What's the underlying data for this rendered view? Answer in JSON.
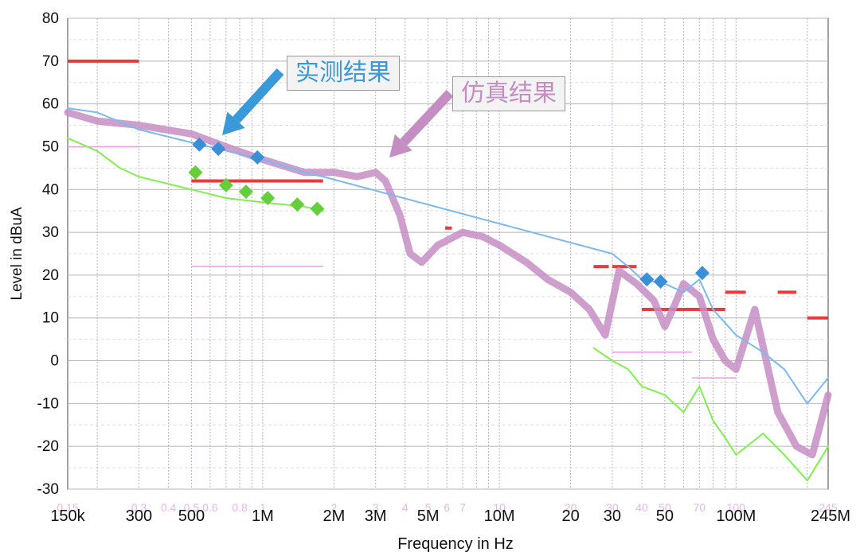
{
  "chart_data": {
    "type": "line",
    "xlabel": "Frequency in Hz",
    "ylabel": "Level in dBuA",
    "xscale": "log",
    "xlim": [
      150000,
      245000000
    ],
    "ylim": [
      -30,
      80
    ],
    "y_ticks": [
      "80",
      "70",
      "60",
      "50",
      "40",
      "30",
      "20",
      "10",
      "0",
      "-10",
      "-20",
      "-30"
    ],
    "x_major_ticks": [
      {
        "label": "150k",
        "value": 150000
      },
      {
        "label": "300",
        "value": 300000
      },
      {
        "label": "500",
        "value": 500000
      },
      {
        "label": "1M",
        "value": 1000000
      },
      {
        "label": "2M",
        "value": 2000000
      },
      {
        "label": "3M",
        "value": 3000000
      },
      {
        "label": "5M",
        "value": 5000000
      },
      {
        "label": "10M",
        "value": 10000000
      },
      {
        "label": "20",
        "value": 20000000
      },
      {
        "label": "30",
        "value": 30000000
      },
      {
        "label": "50",
        "value": 50000000
      },
      {
        "label": "100M",
        "value": 100000000
      },
      {
        "label": "245M",
        "value": 245000000
      }
    ],
    "x_minor_ticks": [
      {
        "label": "0.15",
        "value": 150000
      },
      {
        "label": "0.3",
        "value": 300000
      },
      {
        "label": "0.4",
        "value": 400000
      },
      {
        "label": "0.5",
        "value": 500000
      },
      {
        "label": "0.6",
        "value": 600000
      },
      {
        "label": "0.8",
        "value": 800000
      },
      {
        "label": "1",
        "value": 1000000
      },
      {
        "label": "2",
        "value": 2000000
      },
      {
        "label": "3",
        "value": 3000000
      },
      {
        "label": "4",
        "value": 4000000
      },
      {
        "label": "5",
        "value": 5000000
      },
      {
        "label": "6",
        "value": 6000000
      },
      {
        "label": "7",
        "value": 7000000
      },
      {
        "label": "10",
        "value": 10000000
      },
      {
        "label": "20",
        "value": 20000000
      },
      {
        "label": "30",
        "value": 30000000
      },
      {
        "label": "40",
        "value": 40000000
      },
      {
        "label": "50",
        "value": 50000000
      },
      {
        "label": "70",
        "value": 70000000
      },
      {
        "label": "100",
        "value": 100000000
      },
      {
        "label": "245",
        "value": 245000000
      }
    ],
    "grid": true,
    "annotations": [
      {
        "text": "实测结果",
        "points_to": [
          650000,
          53
        ],
        "color": "#3a9ad9"
      },
      {
        "text": "仿真结果",
        "points_to": [
          3200000,
          46
        ],
        "color": "#c58ec3"
      }
    ],
    "series": [
      {
        "id": "simulation",
        "color": "#c58ec3",
        "x": [
          150000,
          200000,
          300000,
          500000,
          700000,
          1000000,
          1500000,
          2000000,
          2500000,
          3000000,
          3300000,
          3800000,
          4200000,
          4700000,
          5500000,
          7000000,
          8500000,
          10000000,
          13000000,
          16000000,
          20000000,
          24000000,
          28000000,
          32000000,
          38000000,
          45000000,
          50000000,
          55000000,
          60000000,
          70000000,
          80000000,
          90000000,
          100000000,
          120000000,
          150000000,
          180000000,
          210000000,
          245000000
        ],
        "y": [
          58,
          56,
          55,
          53,
          50,
          47,
          44,
          44,
          43,
          44,
          42,
          34,
          25,
          23,
          27,
          30,
          29,
          27,
          23,
          19,
          16,
          12,
          6,
          21,
          18,
          14,
          8,
          13,
          18,
          15,
          5,
          0,
          -2,
          12,
          -12,
          -20,
          -22,
          -8
        ]
      },
      {
        "id": "measured-average",
        "color": "#7ff04f",
        "x": [
          150000,
          200000,
          250000,
          300000,
          500000,
          700000,
          1000000,
          1500000,
          1800000
        ],
        "y": [
          52,
          49,
          45,
          43,
          40,
          38,
          37,
          36,
          35
        ]
      },
      {
        "id": "measured-average-hf",
        "color": "#7ff04f",
        "x": [
          25000000,
          30000000,
          35000000,
          40000000,
          50000000,
          60000000,
          70000000,
          80000000,
          90000000,
          100000000,
          130000000,
          160000000,
          200000000,
          245000000
        ],
        "y": [
          3,
          0,
          -2,
          -6,
          -8,
          -12,
          -6,
          -14,
          -18,
          -22,
          -17,
          -22,
          -28,
          -20
        ]
      },
      {
        "id": "measured-peak",
        "color": "#7cb9ee",
        "x": [
          150000,
          200000,
          300000,
          500000,
          1000000,
          1500000,
          1800000,
          30000000,
          35000000,
          40000000,
          50000000,
          60000000,
          70000000,
          80000000,
          100000000,
          130000000,
          160000000,
          200000000,
          245000000
        ],
        "y": [
          59,
          58,
          54,
          51,
          47,
          44,
          43,
          25,
          22,
          19,
          18,
          16,
          19,
          12,
          6,
          2,
          -2,
          -10,
          -4
        ]
      }
    ],
    "markers": [
      {
        "shape": "diamond",
        "color": "#3b8fd6",
        "x": [
          540000,
          650000,
          950000,
          42000000,
          48000000,
          72000000
        ],
        "y": [
          50.5,
          49.5,
          47.5,
          19,
          18.5,
          20.5
        ]
      },
      {
        "shape": "diamond",
        "color": "#64cf3a",
        "x": [
          520000,
          700000,
          850000,
          1050000,
          1400000,
          1700000
        ],
        "y": [
          44,
          41,
          39.5,
          38,
          36.5,
          35.5
        ]
      }
    ],
    "limit_lines": [
      {
        "color": "#e63c3c",
        "x": [
          150000,
          300000
        ],
        "y": 70
      },
      {
        "color": "#e63c3c",
        "x": [
          500000,
          1800000
        ],
        "y": 42
      },
      {
        "color": "#e63c3c",
        "x": [
          5900000,
          6300000
        ],
        "y": 31
      },
      {
        "color": "#e63c3c",
        "x": [
          25000000,
          29000000
        ],
        "y": 22
      },
      {
        "color": "#e63c3c",
        "x": [
          30000000,
          38000000
        ],
        "y": 22
      },
      {
        "color": "#e63c3c",
        "x": [
          40000000,
          90000000
        ],
        "y": 12
      },
      {
        "color": "#e63c3c",
        "x": [
          90000000,
          110000000
        ],
        "y": 16
      },
      {
        "color": "#e63c3c",
        "x": [
          150000000,
          180000000
        ],
        "y": 16
      },
      {
        "color": "#e63c3c",
        "x": [
          200000000,
          245000000
        ],
        "y": 10
      },
      {
        "color": "#f099e8",
        "x": [
          150000,
          300000
        ],
        "y": 50
      },
      {
        "color": "#f099e8",
        "x": [
          500000,
          1800000
        ],
        "y": 22
      },
      {
        "color": "#f099e8",
        "x": [
          30000000,
          65000000
        ],
        "y": 2
      },
      {
        "color": "#f099e8",
        "x": [
          65000000,
          100000000
        ],
        "y": -4
      }
    ]
  },
  "callouts": {
    "measured": "实测结果",
    "simulation": "仿真结果"
  }
}
